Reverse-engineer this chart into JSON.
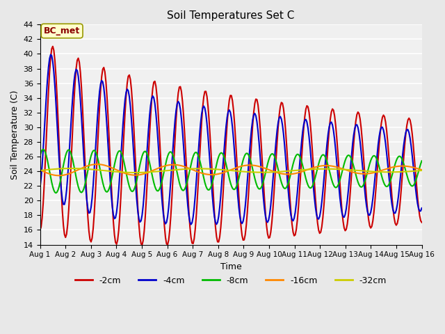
{
  "title": "Soil Temperatures Set C",
  "xlabel": "Time",
  "ylabel": "Soil Temperature (C)",
  "annotation": "BC_met",
  "ylim": [
    14,
    44
  ],
  "yticks": [
    14,
    16,
    18,
    20,
    22,
    24,
    26,
    28,
    30,
    32,
    34,
    36,
    38,
    40,
    42,
    44
  ],
  "x_labels": [
    "Aug 1",
    "Aug 2",
    "Aug 3",
    "Aug 4",
    "Aug 5",
    "Aug 6",
    "Aug 7",
    "Aug 8",
    "Aug 9",
    "Aug 10",
    "Aug 11",
    "Aug 12",
    "Aug 13",
    "Aug 14",
    "Aug 15",
    "Aug 16"
  ],
  "series": {
    "-2cm": {
      "color": "#cc0000",
      "lw": 1.5
    },
    "-4cm": {
      "color": "#0000cc",
      "lw": 1.5
    },
    "-8cm": {
      "color": "#00bb00",
      "lw": 1.5
    },
    "-16cm": {
      "color": "#ff8800",
      "lw": 1.5
    },
    "-32cm": {
      "color": "#cccc00",
      "lw": 1.5
    }
  },
  "background_color": "#e8e8e8",
  "plot_bg": "#f0f0f0",
  "grid_color": "#ffffff",
  "n_days": 15,
  "pts_per_day": 24
}
